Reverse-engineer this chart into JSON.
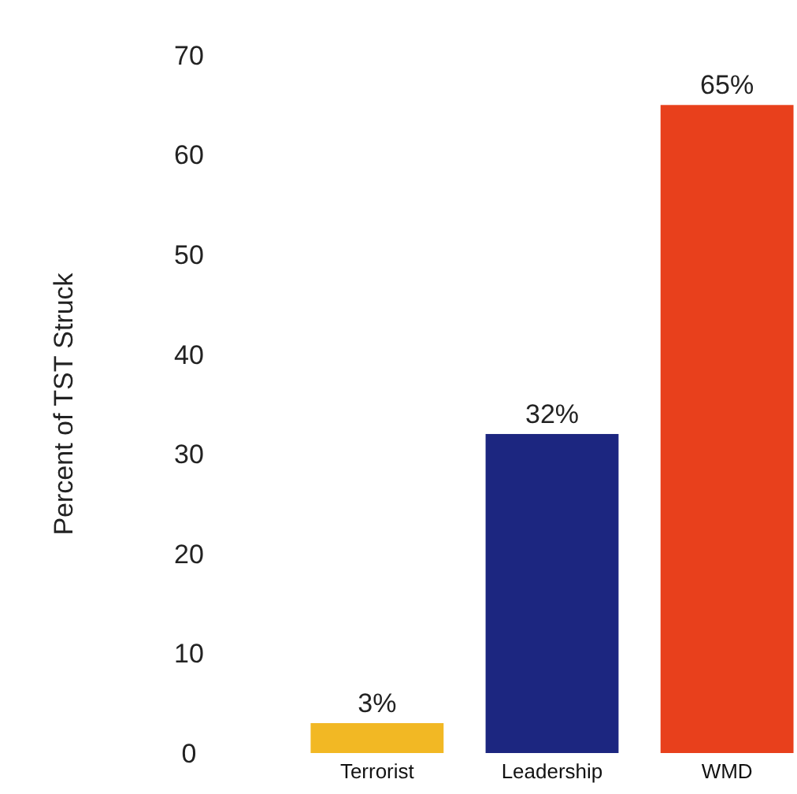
{
  "chart_data": {
    "type": "bar",
    "ylabel": "Percent of TST Struck",
    "categories": [
      "Terrorist",
      "Leadership",
      "WMD"
    ],
    "values": [
      3,
      32,
      65
    ],
    "colors": [
      "#f2b824",
      "#1c2680",
      "#e8401c"
    ],
    "value_labels": [
      "3%",
      "32%",
      "65%"
    ],
    "ylim": [
      0,
      70
    ],
    "yticks": [
      0,
      10,
      20,
      30,
      40,
      50,
      60,
      70
    ],
    "grid": false
  }
}
